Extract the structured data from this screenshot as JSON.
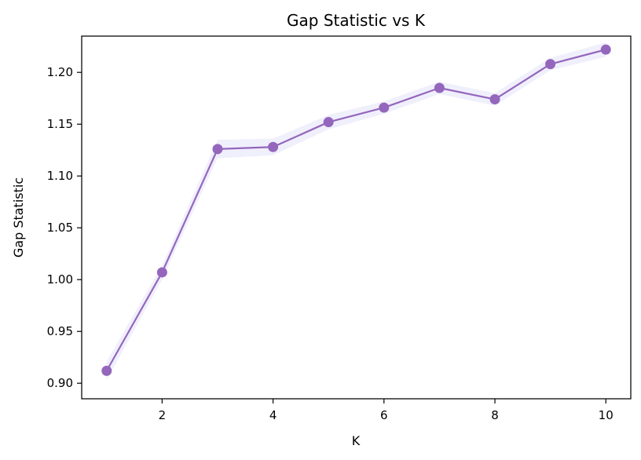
{
  "chart_data": {
    "type": "line",
    "title": "Gap Statistic vs K",
    "xlabel": "K",
    "ylabel": "Gap Statistic",
    "x": [
      1,
      2,
      3,
      4,
      5,
      6,
      7,
      8,
      9,
      10
    ],
    "series": [
      {
        "values": [
          0.912,
          1.007,
          1.126,
          1.128,
          1.152,
          1.166,
          1.185,
          1.174,
          1.208,
          1.222
        ],
        "band_lower": [
          0.903,
          1.0,
          1.117,
          1.12,
          1.145,
          1.16,
          1.179,
          1.168,
          1.202,
          1.215
        ],
        "band_upper": [
          0.921,
          1.014,
          1.135,
          1.136,
          1.159,
          1.172,
          1.191,
          1.18,
          1.214,
          1.229
        ],
        "color": "#9467bd",
        "band_color": "#e6e6fa"
      }
    ],
    "xlim": [
      0.55,
      10.45
    ],
    "ylim": [
      0.885,
      1.235
    ],
    "xticks": [
      2,
      4,
      6,
      8,
      10
    ],
    "xtick_labels": [
      "2",
      "4",
      "6",
      "8",
      "10"
    ],
    "yticks": [
      0.9,
      0.95,
      1.0,
      1.05,
      1.1,
      1.15,
      1.2
    ],
    "ytick_labels": [
      "0.90",
      "0.95",
      "1.00",
      "1.05",
      "1.10",
      "1.15",
      "1.20"
    ],
    "grid": false,
    "legend": "none"
  }
}
